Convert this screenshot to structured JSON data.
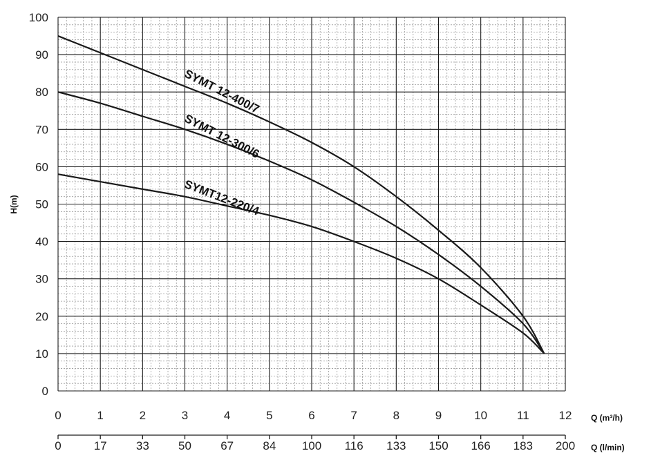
{
  "chart_data": {
    "type": "line",
    "title": "",
    "xlabel": "Q (m³/h)",
    "xlabel2": "Q (l/min)",
    "ylabel": "H(m)",
    "xlim": [
      0,
      12
    ],
    "ylim": [
      0,
      100
    ],
    "x_ticks": [
      "0",
      "1",
      "2",
      "3",
      "4",
      "5",
      "6",
      "7",
      "8",
      "9",
      "10",
      "11",
      "12"
    ],
    "x2_ticks": [
      "0",
      "17",
      "33",
      "50",
      "67",
      "84",
      "100",
      "116",
      "133",
      "150",
      "166",
      "183",
      "200"
    ],
    "y_ticks": [
      "0",
      "10",
      "20",
      "30",
      "40",
      "50",
      "60",
      "70",
      "80",
      "90",
      "100"
    ],
    "grid": true,
    "series": [
      {
        "name": "SYMT 12-400/7",
        "x": [
          0,
          1,
          2,
          3,
          4,
          5,
          6,
          7,
          8,
          9,
          10,
          11,
          11.5
        ],
        "y": [
          95,
          90.5,
          86,
          81.5,
          77,
          72,
          66.5,
          60,
          52,
          43,
          33,
          20,
          10
        ],
        "label_rotation": 27
      },
      {
        "name": "SYMT 12-300/6",
        "x": [
          0,
          1,
          2,
          3,
          4,
          5,
          6,
          7,
          8,
          9,
          10,
          11,
          11.5
        ],
        "y": [
          80,
          77,
          73.5,
          70,
          66,
          61.5,
          56.5,
          50.5,
          44,
          36.5,
          28,
          18,
          10
        ],
        "label_rotation": 27
      },
      {
        "name": "SYMT12-220/4",
        "x": [
          0,
          1,
          2,
          3,
          4,
          5,
          6,
          7,
          8,
          9,
          10,
          11,
          11.5
        ],
        "y": [
          58,
          56,
          54,
          52,
          49.5,
          47,
          44,
          40,
          35.5,
          30,
          23,
          15.5,
          10
        ],
        "label_rotation": 21
      }
    ]
  }
}
